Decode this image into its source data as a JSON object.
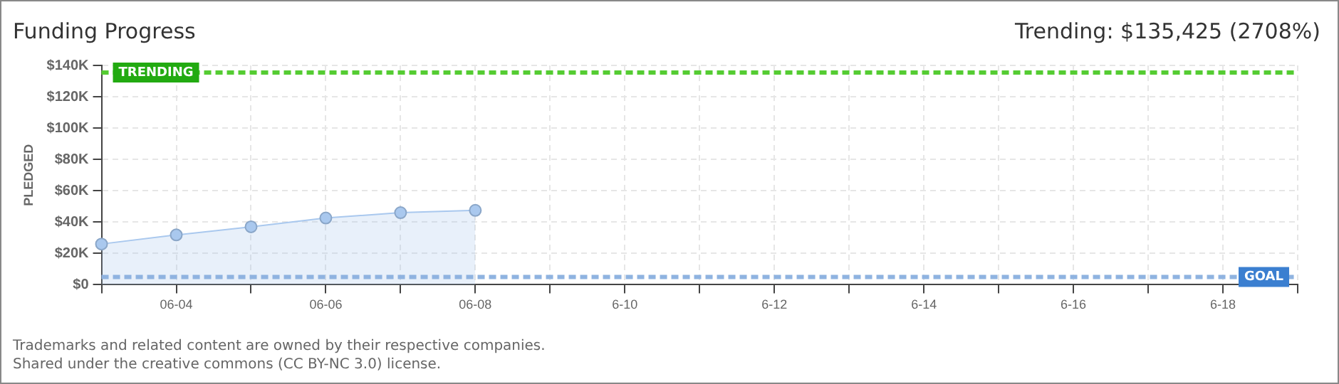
{
  "chart_data": {
    "type": "area",
    "title": "Funding Progress",
    "subtitle": "Trending:  $135,425 (2708%)",
    "ylabel": "PLEDGED",
    "categories": [
      null,
      "06-04",
      null,
      "06-06",
      null,
      "06-08",
      null,
      "6-10",
      null,
      "6-12",
      null,
      "6-14",
      null,
      "6-16",
      null,
      "6-18",
      null
    ],
    "series": [
      {
        "color": "#a9c8ee",
        "values": [
          26000,
          31800,
          37000,
          42600,
          46000,
          47500,
          null,
          null,
          null,
          null,
          null,
          null,
          null,
          null,
          null,
          null,
          null
        ]
      }
    ],
    "ylim": [
      0,
      140000
    ],
    "yticks": [
      {
        "value": 0,
        "label": "$0"
      },
      {
        "value": 20000,
        "label": "$20K"
      },
      {
        "value": 40000,
        "label": "$40K"
      },
      {
        "value": 60000,
        "label": "$60K"
      },
      {
        "value": 80000,
        "label": "$80K"
      },
      {
        "value": 100000,
        "label": "$100K"
      },
      {
        "value": 120000,
        "label": "$120K"
      },
      {
        "value": 140000,
        "label": "$140K"
      }
    ],
    "ref_lines": [
      {
        "axis": "y",
        "value": 135425,
        "label": "TRENDING",
        "color": "#55cc33",
        "line_style": "dashed"
      },
      {
        "axis": "y",
        "value": 5000,
        "label": "GOAL",
        "color": "#8fb3e0",
        "line_style": "dashed"
      }
    ],
    "annotations": [
      "Trademarks and related content are owned by their respective companies.",
      "Shared under the creative commons (CC BY-NC 3.0) license."
    ],
    "grid": true,
    "marker": "circle",
    "legend": false
  }
}
